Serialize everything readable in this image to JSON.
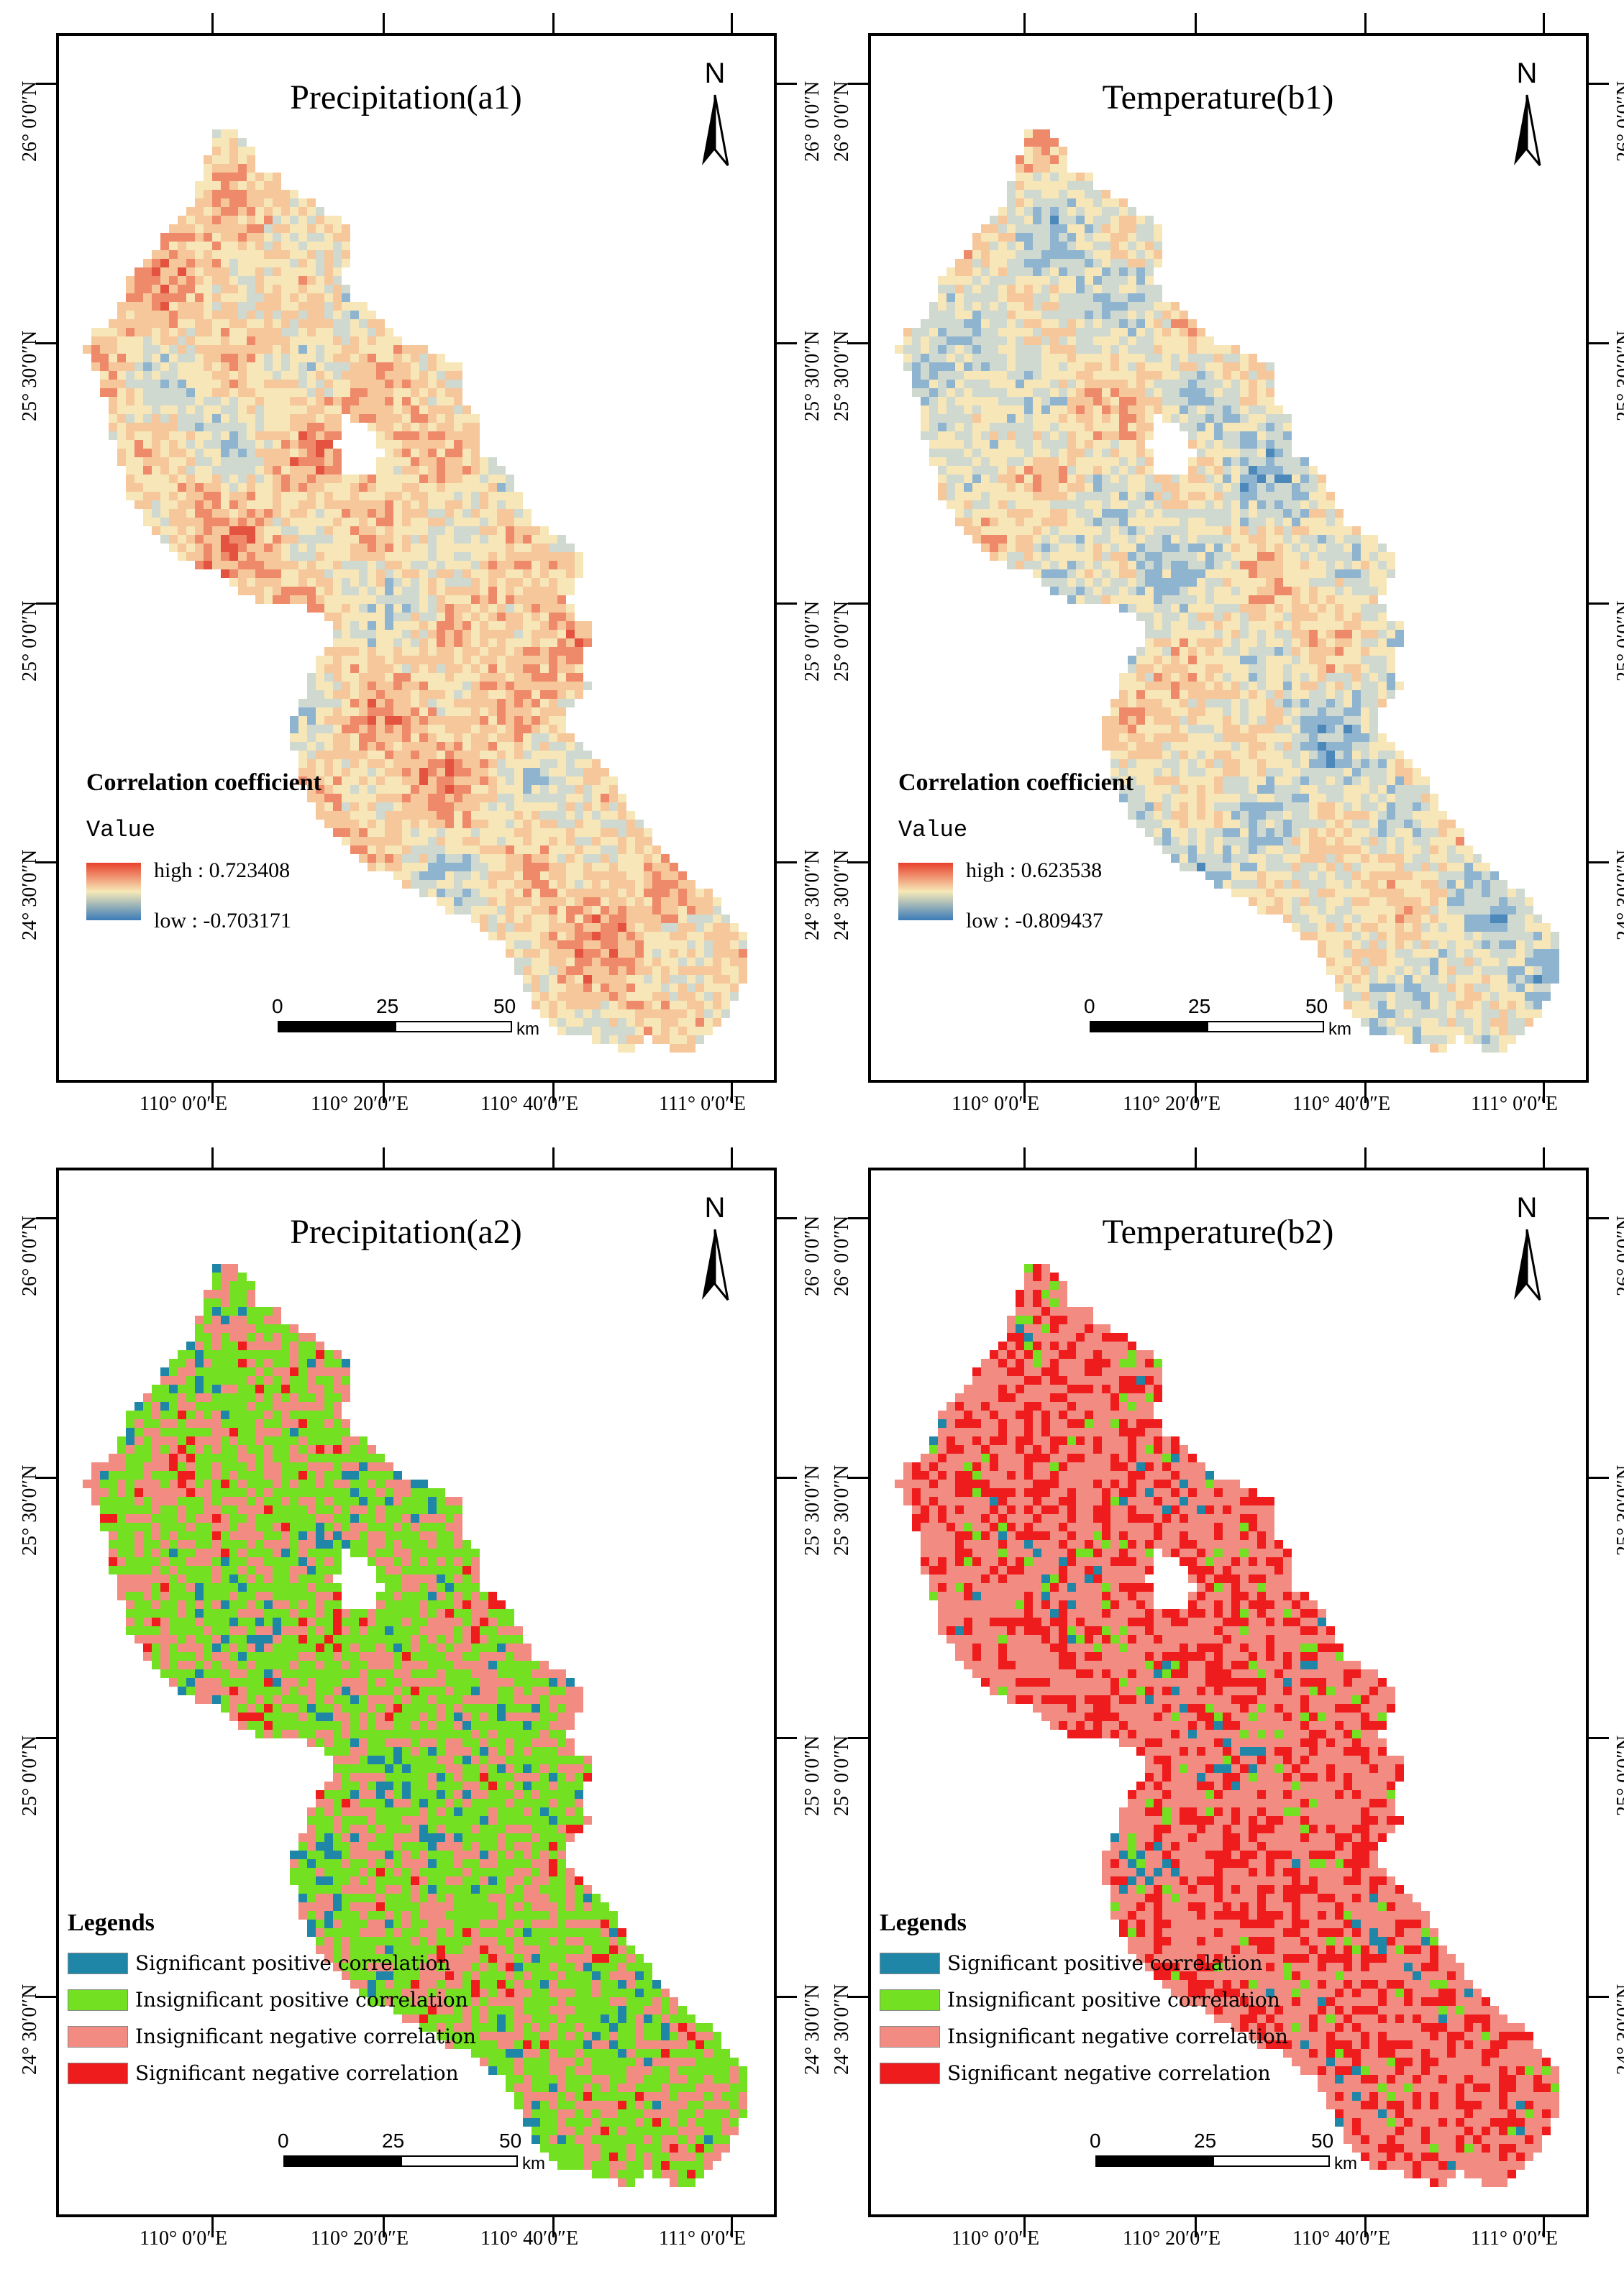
{
  "panels": [
    {
      "id": "a1",
      "title": "Precipitation(a1)",
      "type": "continuous",
      "legend_title": "Correlation coefficient",
      "legend_sub": "Value",
      "high_label": "high : 0.723408",
      "low_label": "low : -0.703171",
      "ramp_colors": [
        "#e8402c",
        "#f7e9b8",
        "#3b7bb8"
      ],
      "palette": [
        "#e3533f",
        "#ee8a6a",
        "#f6c79b",
        "#f6e6b8",
        "#cfd9cf",
        "#8fb4cf",
        "#4d88bb"
      ],
      "bias": 0.25
    },
    {
      "id": "b1",
      "title": "Temperature(b1)",
      "type": "continuous",
      "legend_title": "Correlation coefficient",
      "legend_sub": "Value",
      "high_label": "high : 0.623538",
      "low_label": "low : -0.809437",
      "ramp_colors": [
        "#e8402c",
        "#f7e9b8",
        "#3b7bb8"
      ],
      "palette": [
        "#e3533f",
        "#ee8a6a",
        "#f6c79b",
        "#f6e6b8",
        "#cfd9cf",
        "#8fb4cf",
        "#4d88bb"
      ],
      "bias": -0.15
    },
    {
      "id": "a2",
      "title": "Precipitation(a2)",
      "type": "categorical",
      "legend_title": "Legends",
      "palette": [
        "#1f86a8",
        "#74e022",
        "#f28b82",
        "#ee1c1c"
      ],
      "weights": [
        0.05,
        0.55,
        0.38,
        0.02
      ]
    },
    {
      "id": "b2",
      "title": "Temperature(b2)",
      "type": "categorical",
      "legend_title": "Legends",
      "palette": [
        "#1f86a8",
        "#74e022",
        "#f28b82",
        "#ee1c1c"
      ],
      "weights": [
        0.0,
        0.07,
        0.63,
        0.3
      ]
    }
  ],
  "categories": [
    {
      "label": "Significant positive correlation",
      "color": "#1f86a8"
    },
    {
      "label": "Insignificant positive correlation",
      "color": "#74e022"
    },
    {
      "label": "Insignificant negative correlation",
      "color": "#f28b82"
    },
    {
      "label": "Significant negative correlation",
      "color": "#ee1c1c"
    }
  ],
  "lat_labels": [
    "26° 0′0″N",
    "25° 30′0″N",
    "25° 0′0″N",
    "24° 30′0″N"
  ],
  "lon_labels": [
    "110° 0′0″E",
    "110° 20′0″E",
    "110° 40′0″E",
    "111° 0′0″E"
  ],
  "north_label": "N",
  "scale": {
    "ticks": [
      "0",
      "25",
      "50"
    ],
    "unit": "km"
  }
}
